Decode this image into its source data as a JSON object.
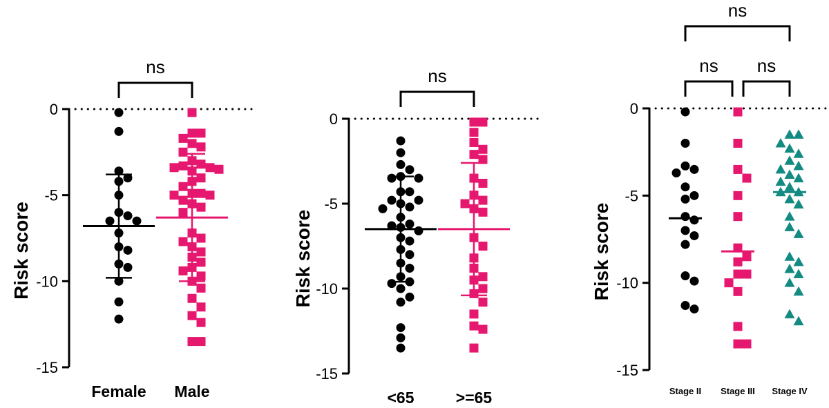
{
  "chart_data": [
    {
      "type": "scatter",
      "ylabel": "Risk score",
      "ylim": [
        -15,
        0
      ],
      "yticks": [
        0,
        -5,
        -10,
        -15
      ],
      "ytick_labels": [
        "0",
        "-5",
        "-10",
        "-15"
      ],
      "reference_line": 0,
      "categories": [
        "Female",
        "Male"
      ],
      "series": [
        {
          "color": "#000000",
          "marker": "circle",
          "mean": -6.8,
          "sd": 3.0,
          "values": [
            -0.2,
            -1.3,
            -3.6,
            -4.0,
            -4.2,
            -5.0,
            -6.0,
            -6.2,
            -6.5,
            -6.5,
            -7.2,
            -8.0,
            -8.2,
            -9.0,
            -9.2,
            -10.0,
            -11.2,
            -12.2
          ]
        },
        {
          "color": "#e6176e",
          "marker": "square",
          "mean": -6.3,
          "sd": 3.7,
          "values": [
            -0.2,
            -1.4,
            -1.4,
            -1.7,
            -2.0,
            -2.2,
            -2.5,
            -3.0,
            -3.2,
            -3.3,
            -3.4,
            -3.4,
            -3.5,
            -3.6,
            -4.0,
            -4.2,
            -4.5,
            -4.9,
            -4.9,
            -5.0,
            -5.0,
            -5.3,
            -5.5,
            -5.7,
            -6.0,
            -7.2,
            -7.5,
            -7.7,
            -8.0,
            -8.3,
            -8.6,
            -8.9,
            -9.2,
            -9.4,
            -9.7,
            -10.0,
            -10.4,
            -11.0,
            -11.5,
            -12.0,
            -12.4,
            -13.5,
            -13.5
          ]
        }
      ],
      "significance": [
        {
          "groups": [
            0,
            1
          ],
          "label": "ns",
          "level": 1
        }
      ]
    },
    {
      "type": "scatter",
      "ylabel": "Risk score",
      "ylim": [
        -15,
        0
      ],
      "yticks": [
        0,
        -5,
        -10,
        -15
      ],
      "ytick_labels": [
        "0",
        "-5",
        "-10",
        "-15"
      ],
      "reference_line": 0,
      "categories": [
        "<65",
        ">=65"
      ],
      "series": [
        {
          "color": "#000000",
          "marker": "circle",
          "mean": -6.5,
          "sd": 3.1,
          "values": [
            -1.3,
            -2.0,
            -2.7,
            -3.0,
            -3.4,
            -3.5,
            -3.5,
            -4.3,
            -4.3,
            -4.8,
            -4.8,
            -5.0,
            -5.2,
            -5.3,
            -5.8,
            -6.2,
            -6.3,
            -6.4,
            -6.6,
            -7.0,
            -7.2,
            -7.7,
            -8.0,
            -8.5,
            -8.8,
            -9.3,
            -9.6,
            -9.7,
            -10.0,
            -10.5,
            -10.8,
            -12.3,
            -12.9,
            -13.5
          ]
        },
        {
          "color": "#e6176e",
          "marker": "square",
          "mean": -6.5,
          "sd": 3.9,
          "values": [
            -0.2,
            -0.2,
            -0.8,
            -1.4,
            -1.8,
            -2.1,
            -2.4,
            -3.5,
            -3.8,
            -4.5,
            -4.8,
            -5.0,
            -5.3,
            -5.5,
            -7.0,
            -7.5,
            -8.2,
            -8.8,
            -9.3,
            -9.5,
            -10.0,
            -10.3,
            -10.8,
            -11.5,
            -12.2,
            -12.4,
            -13.5
          ]
        }
      ],
      "significance": [
        {
          "groups": [
            0,
            1
          ],
          "label": "ns",
          "level": 1
        }
      ]
    },
    {
      "type": "scatter",
      "ylabel": "Risk score",
      "ylim": [
        -15,
        0
      ],
      "yticks": [
        0,
        -5,
        -10,
        -15
      ],
      "ytick_labels": [
        "0",
        "-5",
        "-10",
        "-15"
      ],
      "reference_line": 0,
      "categories": [
        "Stage II",
        "Stage III",
        "Stage IV"
      ],
      "series": [
        {
          "color": "#000000",
          "marker": "circle",
          "median": -6.3,
          "values": [
            -0.2,
            -2.0,
            -3.3,
            -3.5,
            -3.7,
            -4.5,
            -5.0,
            -5.2,
            -6.2,
            -6.4,
            -7.0,
            -7.3,
            -7.8,
            -9.6,
            -9.9,
            -11.3,
            -11.5
          ]
        },
        {
          "color": "#e6176e",
          "marker": "square",
          "median": -8.2,
          "values": [
            -0.2,
            -2.0,
            -3.5,
            -4.0,
            -5.0,
            -6.2,
            -8.0,
            -8.5,
            -8.8,
            -9.5,
            -9.5,
            -10.0,
            -10.5,
            -12.5,
            -13.5,
            -13.5
          ]
        },
        {
          "color": "#138a82",
          "marker": "triangle",
          "median": -4.8,
          "values": [
            -1.5,
            -1.5,
            -2.0,
            -2.3,
            -2.6,
            -3.0,
            -3.3,
            -3.5,
            -3.8,
            -4.0,
            -4.2,
            -4.5,
            -4.8,
            -4.8,
            -5.2,
            -5.5,
            -6.2,
            -6.8,
            -7.2,
            -8.5,
            -8.8,
            -9.2,
            -9.5,
            -10.0,
            -10.5,
            -11.8,
            -12.2
          ]
        }
      ],
      "significance": [
        {
          "groups": [
            0,
            1
          ],
          "label": "ns",
          "level": 1
        },
        {
          "groups": [
            1,
            2
          ],
          "label": "ns",
          "level": 1
        },
        {
          "groups": [
            0,
            2
          ],
          "label": "ns",
          "level": 2
        }
      ]
    }
  ]
}
